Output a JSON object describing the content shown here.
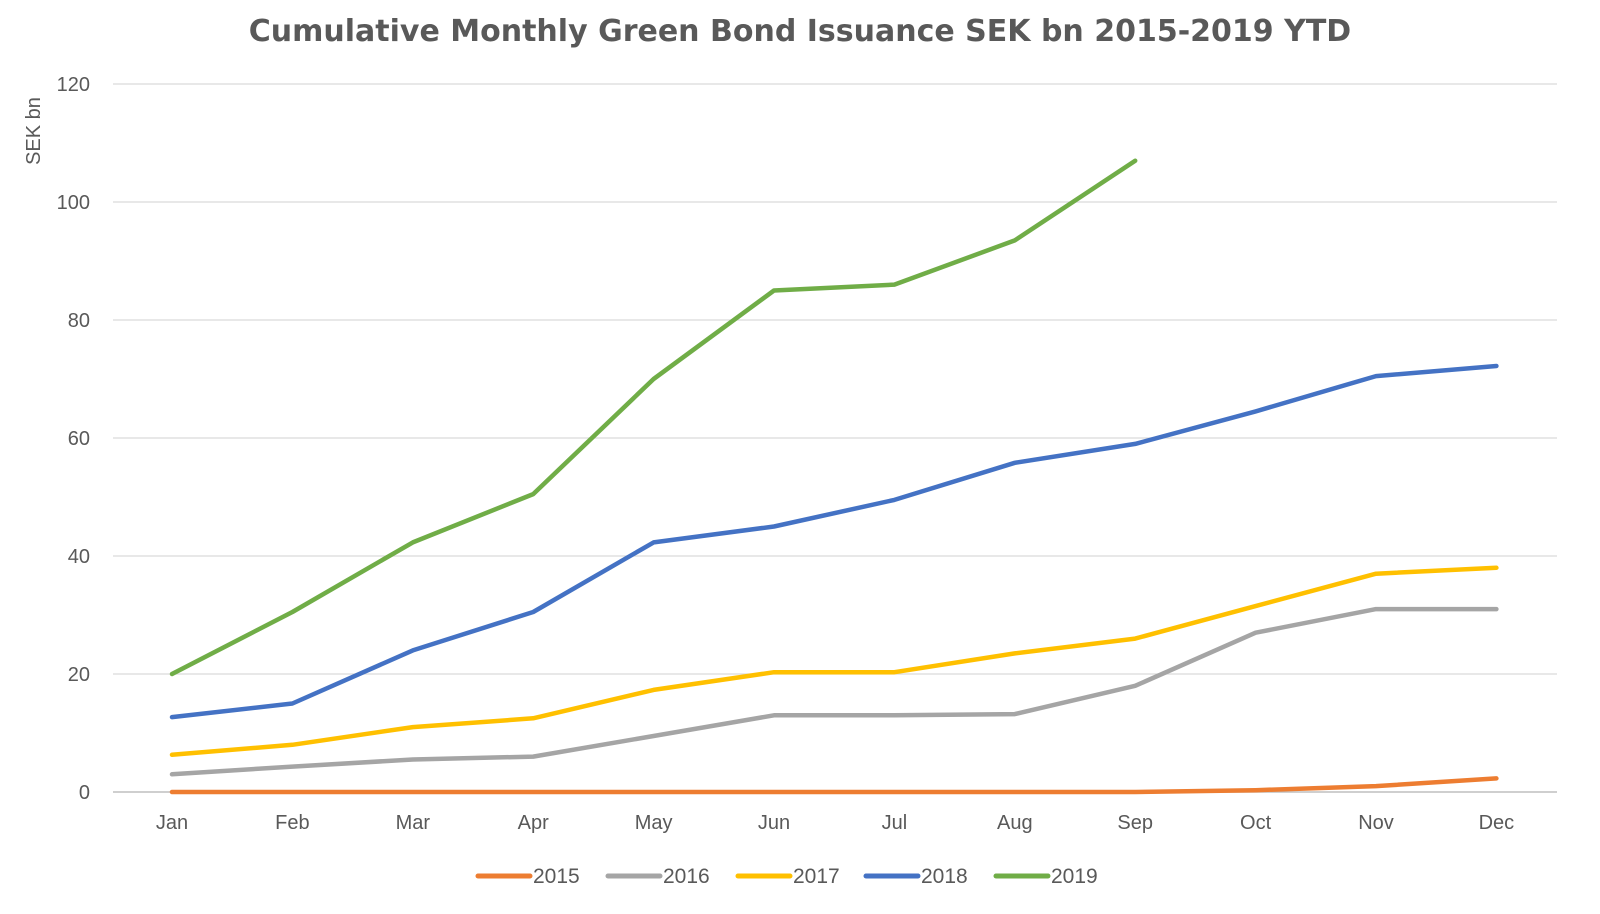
{
  "chart_data": {
    "type": "line",
    "title": "Cumulative Monthly Green Bond Issuance SEK bn 2015-2019 YTD",
    "xlabel": "",
    "ylabel": "SEK bn",
    "ylim": [
      0,
      120
    ],
    "yticks": [
      0,
      20,
      40,
      60,
      80,
      100,
      120
    ],
    "grid": true,
    "legend_position": "bottom",
    "categories": [
      "Jan",
      "Feb",
      "Mar",
      "Apr",
      "May",
      "Jun",
      "Jul",
      "Aug",
      "Sep",
      "Oct",
      "Nov",
      "Dec"
    ],
    "series": [
      {
        "name": "2015",
        "color": "#ed7d31",
        "values": [
          0,
          0,
          0,
          0,
          0,
          0,
          0,
          0,
          0,
          0.3,
          1,
          2.3
        ]
      },
      {
        "name": "2016",
        "color": "#a5a5a5",
        "values": [
          3,
          4.3,
          5.5,
          6,
          9.5,
          13,
          13,
          13.2,
          18,
          27,
          31,
          31
        ]
      },
      {
        "name": "2017",
        "color": "#ffc000",
        "values": [
          6.3,
          8,
          11,
          12.5,
          17.3,
          20.3,
          20.3,
          23.5,
          26,
          31.5,
          37,
          38
        ]
      },
      {
        "name": "2018",
        "color": "#4472c4",
        "values": [
          12.7,
          15,
          24,
          30.5,
          42.3,
          45,
          49.5,
          55.8,
          59,
          64.5,
          70.5,
          72.2
        ]
      },
      {
        "name": "2019",
        "color": "#70ad47",
        "values": [
          20,
          30.5,
          42.3,
          50.5,
          70,
          85,
          86,
          93.5,
          107,
          null,
          null,
          null
        ]
      }
    ]
  }
}
